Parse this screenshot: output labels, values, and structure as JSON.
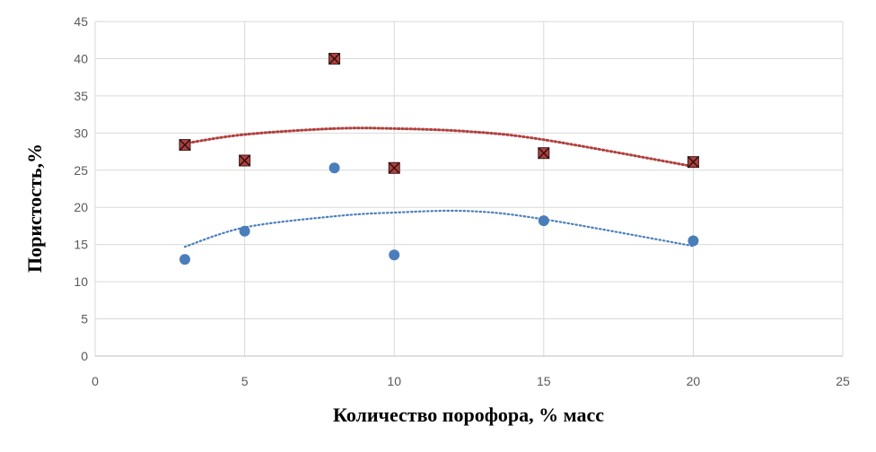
{
  "chart_data": {
    "type": "scatter",
    "title": "",
    "xlabel": "Количество порофора, % масс",
    "ylabel": "Пористость,%",
    "xlim": [
      0,
      25
    ],
    "ylim": [
      0,
      45
    ],
    "xticks": [
      0,
      5,
      10,
      15,
      20,
      25
    ],
    "yticks": [
      0,
      5,
      10,
      15,
      20,
      25,
      30,
      35,
      40,
      45
    ],
    "grid": true,
    "legend": "none",
    "series": [
      {
        "marker": "circle",
        "color": "#4A7EBB",
        "x": [
          3,
          5,
          8,
          10,
          15,
          20
        ],
        "y": [
          13,
          16.8,
          25.3,
          13.6,
          18.2,
          15.5
        ],
        "trendline": {
          "type": "polynomial",
          "x": [
            3,
            5,
            8,
            10,
            12.5,
            15,
            20
          ],
          "y": [
            14.7,
            17.3,
            18.8,
            19.3,
            19.5,
            18.4,
            14.8
          ]
        }
      },
      {
        "marker": "square",
        "color": "#B0413E",
        "x": [
          3,
          5,
          8,
          10,
          15,
          20
        ],
        "y": [
          28.4,
          26.3,
          40,
          25.3,
          27.3,
          26.1
        ],
        "trendline": {
          "type": "polynomial",
          "x": [
            3,
            5,
            8,
            10,
            12.5,
            15,
            20
          ],
          "y": [
            28.6,
            29.8,
            30.6,
            30.6,
            30.2,
            29.1,
            25.5
          ]
        }
      }
    ]
  }
}
